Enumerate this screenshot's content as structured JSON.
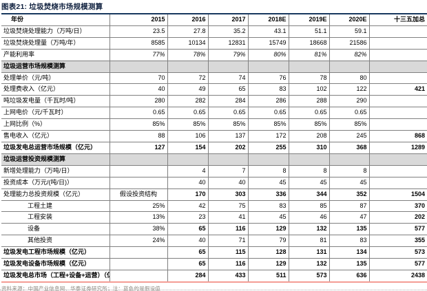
{
  "title": "图表21:  垃圾焚烧市场规模测算",
  "footer": "资料来源：中国产业信息网、华泰证券研究所；注：蓝色的是假设值",
  "colors": {
    "title_rule": "#17375E",
    "bottom_rule": "#F49C94",
    "grid_line": "#7F7F7F",
    "section_bg": "#D9D9D9",
    "assumption_blue": "#558ED5",
    "highlight_red": "#FF0000"
  },
  "table": {
    "columns": [
      "年份",
      "2015",
      "2016",
      "2017",
      "2018E",
      "2019E",
      "2020E",
      "十三五加总"
    ],
    "rows": [
      {
        "label": "垃圾焚烧处理能力（万吨/日）",
        "values": [
          "23.5",
          "27.8",
          "35.2",
          "43.1",
          "51.1",
          "59.1",
          ""
        ],
        "classes": [
          "red",
          "red",
          "red",
          "",
          "",
          "",
          ""
        ]
      },
      {
        "label": "垃圾焚烧处理量（万吨/年）",
        "values": [
          "8585",
          "10134",
          "12831",
          "15749",
          "18668",
          "21586",
          ""
        ],
        "classes": [
          "",
          "",
          "",
          "",
          "",
          "",
          ""
        ]
      },
      {
        "label": "产能利用率",
        "values": [
          "77%",
          "78%",
          "79%",
          "80%",
          "81%",
          "82%",
          ""
        ],
        "classes": [
          "blue-i",
          "blue-i",
          "blue-i",
          "blue-i",
          "blue-i",
          "blue-i",
          ""
        ]
      },
      {
        "type": "section",
        "label": "垃圾运营市场规模测算"
      },
      {
        "label": "处理单价（元/吨）",
        "values": [
          "70",
          "72",
          "74",
          "76",
          "78",
          "80",
          ""
        ],
        "classes": [
          "blue",
          "blue",
          "blue",
          "blue",
          "blue",
          "blue",
          ""
        ]
      },
      {
        "label": "处理费收入（亿元）",
        "values": [
          "40",
          "49",
          "65",
          "83",
          "102",
          "122",
          "421"
        ],
        "classes": [
          "",
          "",
          "",
          "",
          "",
          "",
          "b"
        ]
      },
      {
        "label": "吨垃圾发电量（千瓦时/吨）",
        "values": [
          "280",
          "282",
          "284",
          "286",
          "288",
          "290",
          ""
        ],
        "classes": [
          "blue",
          "blue",
          "blue",
          "blue",
          "blue",
          "blue",
          ""
        ]
      },
      {
        "label": "上网电价（元/千瓦时）",
        "values": [
          "0.65",
          "0.65",
          "0.65",
          "0.65",
          "0.65",
          "0.65",
          ""
        ],
        "classes": [
          "blue",
          "blue",
          "blue",
          "blue",
          "blue",
          "blue",
          ""
        ]
      },
      {
        "label": "上网比例（%）",
        "values": [
          "85%",
          "85%",
          "85%",
          "85%",
          "85%",
          "85%",
          ""
        ],
        "classes": [
          "blue",
          "blue",
          "blue",
          "blue",
          "blue",
          "blue",
          ""
        ]
      },
      {
        "label": "售电收入（亿元）",
        "values": [
          "88",
          "106",
          "137",
          "172",
          "208",
          "245",
          "868"
        ],
        "classes": [
          "",
          "",
          "",
          "",
          "",
          "",
          "b"
        ]
      },
      {
        "label": "垃圾发电总运营市场规模（亿元）",
        "bold_label": true,
        "values": [
          "127",
          "154",
          "202",
          "255",
          "310",
          "368",
          "1289"
        ],
        "classes": [
          "b",
          "b",
          "b",
          "b",
          "b",
          "b",
          "b"
        ]
      },
      {
        "type": "section",
        "label": "垃圾运营投资规模测算"
      },
      {
        "label": "新增处理能力（万吨/日）",
        "values": [
          "",
          "4",
          "7",
          "8",
          "8",
          "8",
          ""
        ],
        "classes": [
          "",
          "",
          "",
          "",
          "",
          "",
          ""
        ]
      },
      {
        "label": "投资成本（万元/(吨/日)）",
        "values": [
          "",
          "40",
          "40",
          "45",
          "45",
          "45",
          ""
        ],
        "classes": [
          "",
          "blue",
          "blue",
          "blue",
          "blue",
          "blue",
          ""
        ]
      },
      {
        "label": "处理能力总投资规模（亿元）",
        "values": [
          "假设投资结构",
          "170",
          "303",
          "336",
          "344",
          "352",
          "1504"
        ],
        "classes": [
          "assume",
          "b",
          "b",
          "b",
          "b",
          "b",
          "b"
        ]
      },
      {
        "label": "工程土建",
        "indent": true,
        "values": [
          "25%",
          "42",
          "75",
          "83",
          "85",
          "87",
          "370"
        ],
        "classes": [
          "",
          "",
          "",
          "",
          "",
          "",
          "b"
        ]
      },
      {
        "label": "工程安装",
        "indent": true,
        "values": [
          "13%",
          "23",
          "41",
          "45",
          "46",
          "47",
          "202"
        ],
        "classes": [
          "",
          "",
          "",
          "",
          "",
          "",
          "b"
        ]
      },
      {
        "label": "设备",
        "indent": true,
        "values": [
          "38%",
          "65",
          "116",
          "129",
          "132",
          "135",
          "577"
        ],
        "classes": [
          "",
          "b",
          "b",
          "b",
          "b",
          "b",
          "b"
        ]
      },
      {
        "label": "其他投资",
        "indent": true,
        "values": [
          "24%",
          "40",
          "71",
          "79",
          "81",
          "83",
          "355"
        ],
        "classes": [
          "",
          "",
          "",
          "",
          "",
          "",
          "b"
        ]
      },
      {
        "label": "垃圾发电工程市场规模（亿元）",
        "bold_label": true,
        "values": [
          "",
          "65",
          "115",
          "128",
          "131",
          "134",
          "573"
        ],
        "classes": [
          "",
          "b",
          "b",
          "b",
          "b",
          "b",
          "b"
        ]
      },
      {
        "label": "垃圾发电设备市场规模（亿元）",
        "bold_label": true,
        "values": [
          "",
          "65",
          "116",
          "129",
          "132",
          "135",
          "577"
        ],
        "classes": [
          "",
          "b",
          "b",
          "b",
          "b",
          "b",
          "b"
        ]
      },
      {
        "label": "垃圾发电总市场（工程+设备+运营）（亿元）",
        "bold_label": true,
        "values": [
          "",
          "284",
          "433",
          "511",
          "573",
          "636",
          "2438"
        ],
        "classes": [
          "",
          "b",
          "b",
          "b",
          "b",
          "b",
          "b"
        ]
      }
    ]
  }
}
